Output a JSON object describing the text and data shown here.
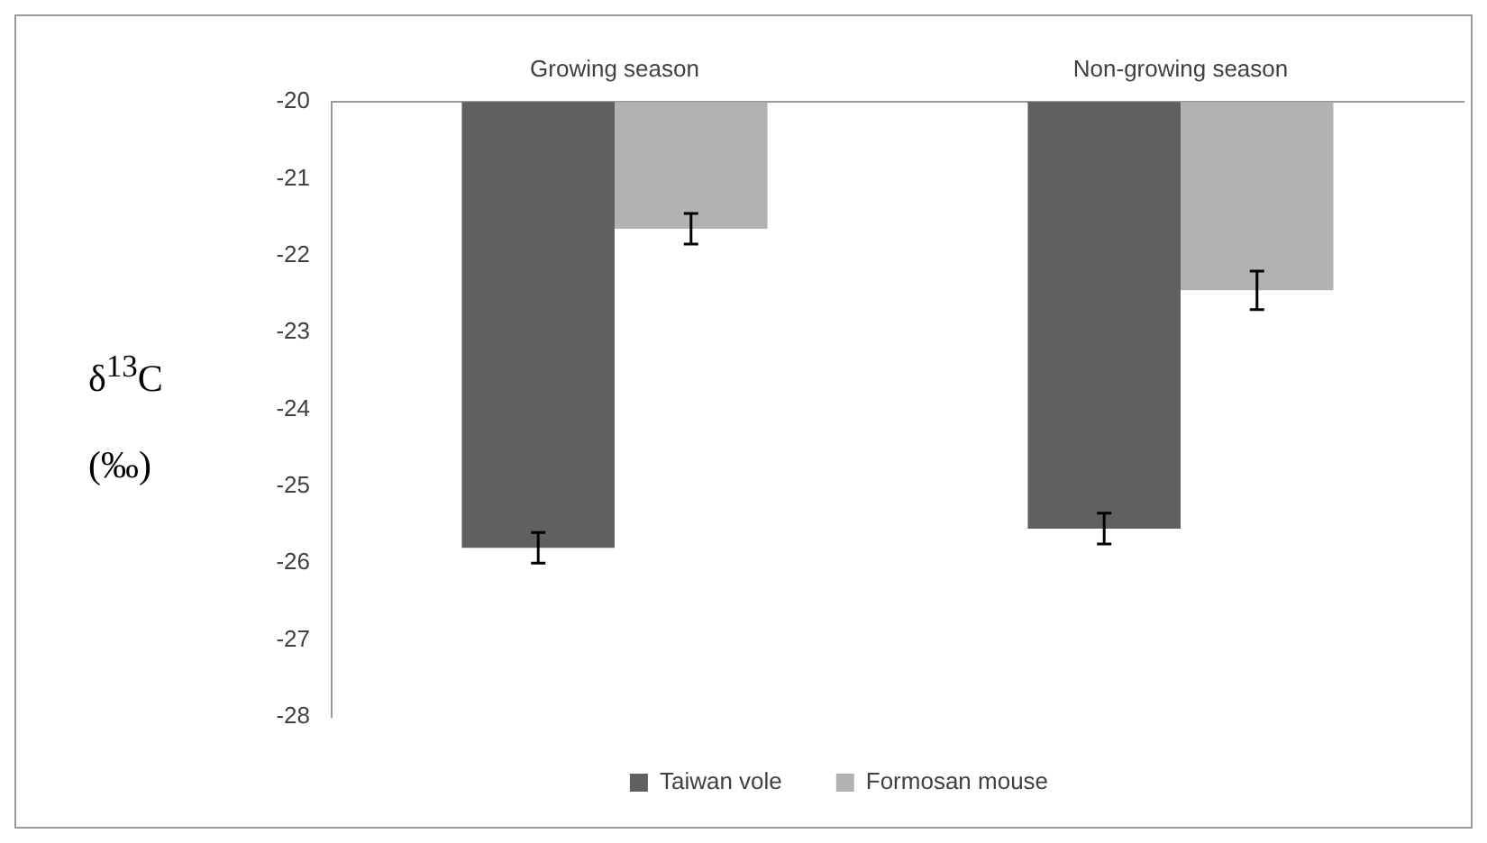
{
  "chart_data": {
    "type": "bar",
    "ylabel": "δ$^{13}$C (‰)",
    "categories": [
      "Growing season",
      "Non-growing season"
    ],
    "series": [
      {
        "name": "Taiwan vole",
        "color": "#606060",
        "values": [
          -25.8,
          -25.55
        ],
        "errors": [
          0.2,
          0.2
        ]
      },
      {
        "name": "Formosan mouse",
        "color": "#b2b2b2",
        "values": [
          -21.65,
          -22.45
        ],
        "errors": [
          0.2,
          0.25
        ]
      }
    ],
    "ylim": [
      -28,
      -20
    ],
    "yticks": [
      -20,
      -21,
      -22,
      -23,
      -24,
      -25,
      -26,
      -27,
      -28
    ],
    "legend": "bottom"
  }
}
